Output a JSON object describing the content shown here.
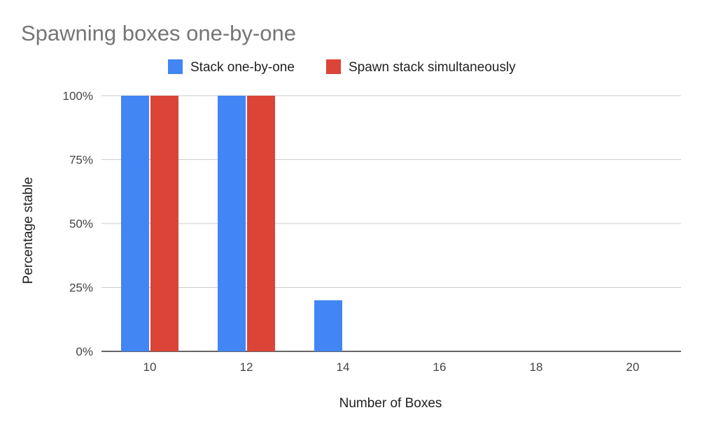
{
  "chart_data": {
    "type": "bar",
    "title": "Spawning boxes one-by-one",
    "xlabel": "Number of Boxes",
    "ylabel": "Percentage stable",
    "categories": [
      "10",
      "12",
      "14",
      "16",
      "18",
      "20"
    ],
    "series": [
      {
        "name": "Stack one-by-one",
        "color": "#4285f4",
        "values": [
          100,
          100,
          20,
          0,
          0,
          0
        ]
      },
      {
        "name": "Spawn stack simultaneously",
        "color": "#db4437",
        "values": [
          100,
          100,
          0,
          0,
          0,
          0
        ]
      }
    ],
    "ylim": [
      0,
      100
    ],
    "yticks": [
      "0%",
      "25%",
      "50%",
      "75%",
      "100%"
    ],
    "ytick_values": [
      0,
      25,
      50,
      75,
      100
    ],
    "grid": true,
    "legend_position": "top-center"
  }
}
